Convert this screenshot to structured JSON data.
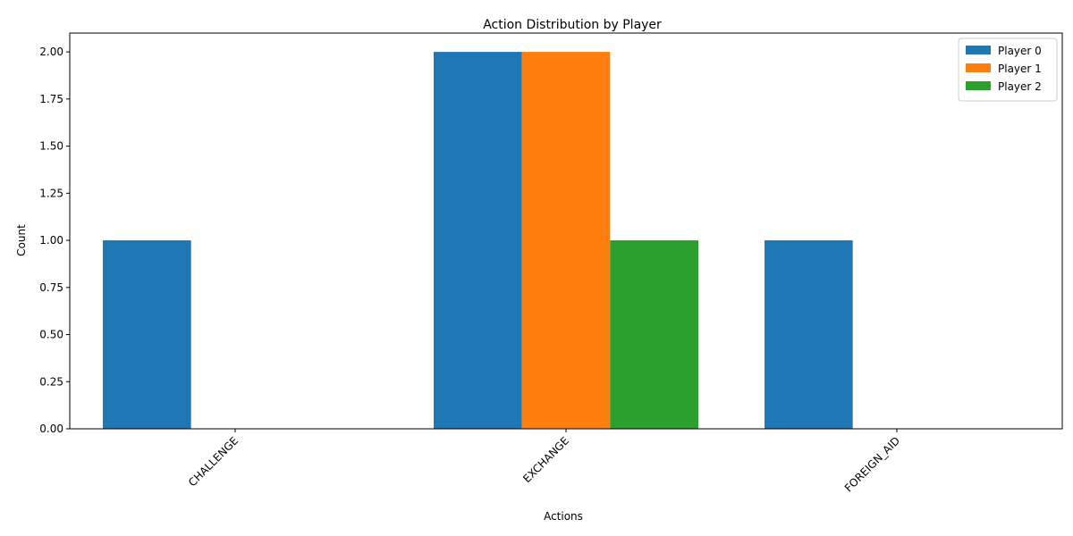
{
  "chart_data": {
    "type": "bar",
    "title": "Action Distribution by Player",
    "xlabel": "Actions",
    "ylabel": "Count",
    "categories": [
      "CHALLENGE",
      "EXCHANGE",
      "FOREIGN_AID"
    ],
    "series": [
      {
        "name": "Player 0",
        "values": [
          1,
          2,
          1
        ],
        "color": "#1f77b4"
      },
      {
        "name": "Player 1",
        "values": [
          0,
          2,
          0
        ],
        "color": "#ff7f0e"
      },
      {
        "name": "Player 2",
        "values": [
          0,
          1,
          0
        ],
        "color": "#2ca02c"
      }
    ],
    "ylim": [
      0,
      2.1
    ],
    "yticks": [
      "0.00",
      "0.25",
      "0.50",
      "0.75",
      "1.00",
      "1.25",
      "1.50",
      "1.75",
      "2.00"
    ],
    "legend_position": "top-right",
    "grid": false
  }
}
